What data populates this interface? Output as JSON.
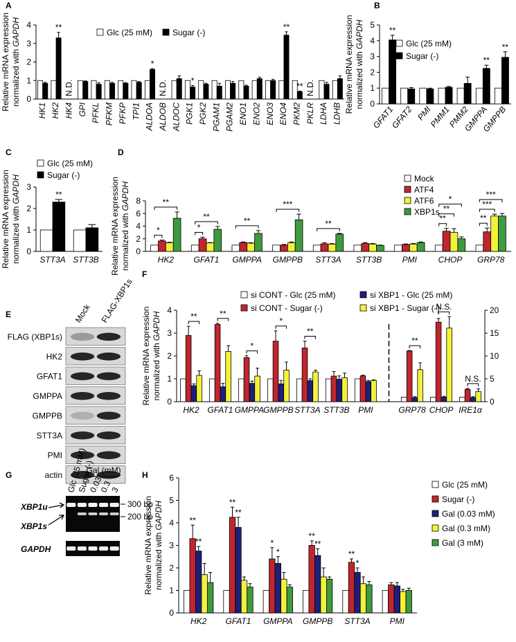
{
  "chart_data": [
    {
      "type": "bar",
      "panel": "A",
      "ylabel": [
        "Relative mRNA expression",
        "normalized with"
      ],
      "ylabel_italic": "GAPDH",
      "categories": [
        "HK1",
        "HK2",
        "HK4",
        "GPI",
        "PFKL",
        "PFKM",
        "PFKP",
        "TPI1",
        "ALDOA",
        "ALDOB",
        "ALDOC",
        "PGK1",
        "PGK2",
        "PGAM1",
        "PGAM2",
        "ENO1",
        "ENO2",
        "ENO3",
        "ENO4",
        "PKM2",
        "PKLR",
        "LDHA",
        "LDHB"
      ],
      "category_notes": [
        null,
        null,
        "N.D.",
        null,
        null,
        null,
        null,
        null,
        null,
        "N.D.",
        null,
        null,
        null,
        null,
        null,
        null,
        null,
        null,
        null,
        null,
        "N.D.",
        null,
        null
      ],
      "series": [
        {
          "name": "Glc (25 mM)",
          "color": "#ffffff",
          "values": [
            1,
            1,
            null,
            1,
            1,
            1,
            1,
            1,
            1,
            null,
            1,
            1,
            1,
            1,
            1,
            1,
            1,
            1,
            1,
            1,
            null,
            1,
            1
          ]
        },
        {
          "name": "Sugar (-)",
          "color": "#000000",
          "values": [
            0.85,
            3.3,
            null,
            0.95,
            0.8,
            0.85,
            0.85,
            0.9,
            1.6,
            null,
            1.1,
            0.65,
            0.8,
            0.7,
            0.85,
            0.7,
            1.1,
            1.0,
            3.45,
            0.4,
            null,
            0.8,
            1.1
          ],
          "errors": [
            0.05,
            0.3,
            null,
            0.03,
            0.08,
            0.05,
            0.04,
            0.05,
            0.04,
            null,
            0.15,
            0.08,
            0.05,
            0.15,
            0.1,
            0.05,
            0.08,
            0.06,
            0.18,
            0.03,
            null,
            0.1,
            0.15
          ],
          "annotations": [
            null,
            "**",
            null,
            null,
            null,
            null,
            null,
            null,
            "*",
            null,
            null,
            "*",
            null,
            null,
            null,
            null,
            null,
            null,
            "**",
            "**",
            null,
            null,
            null
          ]
        }
      ],
      "ylim": [
        0,
        4
      ],
      "yticks": [
        0,
        1,
        2,
        3,
        4
      ]
    },
    {
      "type": "bar",
      "panel": "B",
      "ylabel": [
        "Relative mRNA expression",
        "normalized with"
      ],
      "ylabel_italic": "GAPDH",
      "categories": [
        "GFAT1",
        "GFAT2",
        "PMI",
        "PMM1",
        "PMM2",
        "GMPPA",
        "GMPPB"
      ],
      "series": [
        {
          "name": "Glc (25 mM)",
          "color": "#ffffff",
          "values": [
            1,
            1,
            1,
            1,
            1,
            1,
            1
          ]
        },
        {
          "name": "Sugar (-)",
          "color": "#000000",
          "values": [
            4.05,
            0.95,
            0.95,
            1.05,
            1.3,
            2.25,
            2.95
          ],
          "errors": [
            0.3,
            0.08,
            0.05,
            0.06,
            0.4,
            0.2,
            0.35
          ],
          "annotations": [
            "**",
            null,
            null,
            null,
            null,
            "**",
            "**"
          ]
        }
      ],
      "ylim": [
        0,
        5
      ],
      "yticks": [
        0,
        1,
        2,
        3,
        4,
        5
      ]
    },
    {
      "type": "bar",
      "panel": "C",
      "ylabel": [
        "Relative mRNA expression",
        "normalized with"
      ],
      "ylabel_italic": "GAPDH",
      "categories": [
        "STT3A",
        "STT3B"
      ],
      "series": [
        {
          "name": "Glc (25 mM)",
          "color": "#ffffff",
          "values": [
            1,
            1
          ]
        },
        {
          "name": "Sugar (-)",
          "color": "#000000",
          "values": [
            2.3,
            1.1
          ],
          "errors": [
            0.12,
            0.15
          ],
          "annotations": [
            "**",
            null
          ]
        }
      ],
      "ylim": [
        0,
        3
      ],
      "yticks": [
        0,
        1,
        2,
        3
      ]
    },
    {
      "type": "bar",
      "panel": "D",
      "ylabel": [
        "Relative mRNA expression",
        "normalized with"
      ],
      "ylabel_italic": "GAPDH",
      "categories": [
        "HK2",
        "GFAT1",
        "GMPPA",
        "GMPPB",
        "STT3A",
        "STT3B",
        "PMI",
        "CHOP",
        "GRP78"
      ],
      "series": [
        {
          "name": "Mock",
          "color": "#ffffff",
          "values": [
            1,
            1,
            1,
            1,
            1,
            1,
            1,
            1,
            1
          ]
        },
        {
          "name": "ATF4",
          "color": "#c0262d",
          "values": [
            1.65,
            2.0,
            1.4,
            1.0,
            1.2,
            1.25,
            1.1,
            3.2,
            3.1
          ],
          "errors": [
            0.15,
            0.25,
            0.1,
            0.1,
            0.15,
            0.15,
            0.08,
            0.45,
            0.6
          ]
        },
        {
          "name": "ATF6",
          "color": "#f2f23a",
          "values": [
            1.35,
            1.35,
            1.3,
            1.35,
            1.15,
            1.15,
            1.15,
            3.0,
            5.6
          ],
          "errors": [
            0.1,
            0.05,
            0.08,
            0.15,
            0.08,
            0.1,
            0.1,
            0.6,
            0.3
          ]
        },
        {
          "name": "XBP1s",
          "color": "#3f9a3f",
          "values": [
            5.25,
            3.5,
            2.85,
            5.0,
            2.75,
            0.95,
            1.4,
            2.0,
            5.6
          ],
          "errors": [
            1.0,
            0.45,
            0.45,
            0.9,
            0.1,
            0.05,
            0.1,
            0.3,
            0.4
          ]
        }
      ],
      "brackets": [
        {
          "category": "HK2",
          "from": "Mock",
          "to": "ATF4",
          "label": "*"
        },
        {
          "category": "HK2",
          "from": "Mock",
          "to": "XBP1s",
          "label": "**"
        },
        {
          "category": "GFAT1",
          "from": "Mock",
          "to": "ATF4",
          "label": "*"
        },
        {
          "category": "GFAT1",
          "from": "Mock",
          "to": "XBP1s",
          "label": "**"
        },
        {
          "category": "GMPPA",
          "from": "Mock",
          "to": "XBP1s",
          "label": "**"
        },
        {
          "category": "GMPPB",
          "from": "Mock",
          "to": "XBP1s",
          "label": "***"
        },
        {
          "category": "STT3A",
          "from": "Mock",
          "to": "XBP1s",
          "label": "**"
        },
        {
          "category": "CHOP",
          "from": "Mock",
          "to": "ATF4",
          "label": "**"
        },
        {
          "category": "CHOP",
          "from": "Mock",
          "to": "ATF6",
          "label": "**"
        },
        {
          "category": "CHOP",
          "from": "Mock",
          "to": "XBP1s",
          "label": "*"
        },
        {
          "category": "GRP78",
          "from": "Mock",
          "to": "ATF4",
          "label": "**"
        },
        {
          "category": "GRP78",
          "from": "Mock",
          "to": "ATF6",
          "label": "***"
        },
        {
          "category": "GRP78",
          "from": "Mock",
          "to": "XBP1s",
          "label": "***"
        }
      ],
      "ylim": [
        0,
        8
      ],
      "yticks": [
        0,
        2,
        4,
        6,
        8
      ]
    },
    {
      "type": "blot",
      "panel": "E",
      "columns": [
        "Mock",
        "FLAG-XBP1s"
      ],
      "rows": [
        "FLAG (XBP1s)",
        "HK2",
        "GFAT1",
        "GMPPA",
        "GMPPB",
        "STT3A",
        "PMI",
        "actin"
      ]
    },
    {
      "type": "bar",
      "panel": "F",
      "ylabel": [
        "Relative mRNA expression",
        "normalized with"
      ],
      "ylabel_italic": "GAPDH",
      "categories": [
        "HK2",
        "GFAT1",
        "GMPPA",
        "GMPPB",
        "STT3A",
        "STT3B",
        "PMI"
      ],
      "categories_y2": [
        "GRP78",
        "CHOP",
        "IRE1α"
      ],
      "series": [
        {
          "name": "si CONT - Glc (25 mM)",
          "color": "#ffffff",
          "values": [
            1,
            1,
            1,
            1,
            1,
            1,
            1
          ],
          "values_y2": [
            1,
            1,
            1
          ]
        },
        {
          "name": "si CONT - Sugar (-)",
          "color": "#c0262d",
          "values": [
            2.9,
            3.38,
            1.93,
            2.65,
            2.35,
            1.12,
            1.13
          ],
          "errors": [
            0.4,
            0.05,
            0.08,
            0.45,
            0.3,
            0.2,
            0.03
          ],
          "values_y2": [
            11.1,
            17.4,
            2.7
          ],
          "errors_y2": [
            0.1,
            0.8,
            0.2
          ]
        },
        {
          "name": "si XBP1 - Glc (25 mM)",
          "color": "#1f1f7a",
          "values": [
            0.7,
            0.65,
            0.8,
            0.78,
            0.92,
            0.98,
            0.88
          ],
          "errors": [
            0.08,
            0.15,
            0.1,
            0.15,
            0.08,
            0.15,
            0.05
          ],
          "values_y2": [
            0.9,
            1.0,
            0.9
          ],
          "errors_y2": [
            0.2,
            0.2,
            0.2
          ]
        },
        {
          "name": "si XBP1 - Sugar (-)",
          "color": "#f2f23a",
          "values": [
            1.15,
            2.2,
            1.12,
            1.38,
            1.3,
            1.05,
            0.93
          ],
          "errors": [
            0.2,
            0.25,
            0.35,
            0.35,
            0.08,
            0.2,
            0.03
          ],
          "values_y2": [
            7.0,
            16.1,
            2.2
          ],
          "errors_y2": [
            1.5,
            2.5,
            0.6
          ]
        }
      ],
      "brackets": [
        {
          "category": "HK2",
          "from": "si CONT - Sugar (-)",
          "to": "si XBP1 - Sugar (-)",
          "label": "**"
        },
        {
          "category": "GFAT1",
          "from": "si CONT - Sugar (-)",
          "to": "si XBP1 - Sugar (-)",
          "label": "**"
        },
        {
          "category": "GMPPA",
          "from": "si CONT - Sugar (-)",
          "to": "si XBP1 - Sugar (-)",
          "label": "*"
        },
        {
          "category": "GMPPB",
          "from": "si CONT - Sugar (-)",
          "to": "si XBP1 - Sugar (-)",
          "label": "*"
        },
        {
          "category": "STT3A",
          "from": "si CONT - Sugar (-)",
          "to": "si XBP1 - Sugar (-)",
          "label": "**"
        },
        {
          "category": "GRP78",
          "from": "si CONT - Sugar (-)",
          "to": "si XBP1 - Sugar (-)",
          "label": "**"
        },
        {
          "category": "CHOP",
          "from": "si CONT - Sugar (-)",
          "to": "si XBP1 - Sugar (-)",
          "label": "N.S."
        },
        {
          "category": "IRE1α",
          "from": "si CONT - Sugar (-)",
          "to": "si XBP1 - Sugar (-)",
          "label": "N.S."
        }
      ],
      "ylim": [
        0,
        4
      ],
      "yticks": [
        0,
        1,
        2,
        3,
        4
      ],
      "y2lim": [
        0,
        20
      ],
      "y2ticks": [
        0,
        5,
        10,
        15,
        20
      ]
    },
    {
      "type": "gel",
      "panel": "G",
      "lanes": [
        "Glc (25 mM)",
        "Sugar (-)"
      ],
      "group_label": "Gal (mM)",
      "group_lanes": [
        "0.03",
        "0.3",
        "3"
      ],
      "bands": [
        "XBP1u",
        "XBP1s",
        "GAPDH"
      ],
      "markers": [
        "300 bp",
        "200 bp"
      ]
    },
    {
      "type": "bar",
      "panel": "H",
      "ylabel": [
        "Relative mRNA expression",
        "normalized with"
      ],
      "ylabel_italic": "GAPDH",
      "categories": [
        "HK2",
        "GFAT1",
        "GMPPA",
        "GMPPB",
        "STT3A",
        "PMI"
      ],
      "series": [
        {
          "name": "Glc (25 mM)",
          "color": "#ffffff",
          "values": [
            1,
            1,
            1,
            1,
            1,
            1
          ]
        },
        {
          "name": "Sugar (-)",
          "color": "#c0262d",
          "values": [
            3.3,
            4.25,
            2.4,
            3.0,
            2.25,
            1.25
          ],
          "errors": [
            0.6,
            0.45,
            0.5,
            0.2,
            0.15,
            0.1
          ],
          "annotations": [
            "**",
            "**",
            "*",
            "**",
            "**",
            null
          ]
        },
        {
          "name": "Gal (0.03 mM)",
          "color": "#1f1f7a",
          "values": [
            2.75,
            3.8,
            2.2,
            2.55,
            1.8,
            1.2
          ],
          "errors": [
            0.2,
            0.45,
            0.3,
            0.3,
            0.2,
            0.15
          ],
          "annotations": [
            "**",
            "**",
            "*",
            "**",
            "*",
            null
          ]
        },
        {
          "name": "Gal (0.3 mM)",
          "color": "#f2f23a",
          "values": [
            1.7,
            1.45,
            1.5,
            1.6,
            1.3,
            0.95
          ],
          "errors": [
            0.5,
            0.15,
            0.3,
            0.4,
            0.3,
            0.1
          ]
        },
        {
          "name": "Gal (3 mM)",
          "color": "#3f9a3f",
          "values": [
            1.35,
            1.15,
            1.15,
            1.5,
            1.25,
            1.0
          ],
          "errors": [
            0.45,
            0.15,
            0.1,
            0.1,
            0.15,
            0.1
          ]
        }
      ],
      "ylim": [
        0,
        6
      ],
      "yticks": [
        0,
        1,
        2,
        3,
        4,
        5,
        6
      ]
    }
  ]
}
